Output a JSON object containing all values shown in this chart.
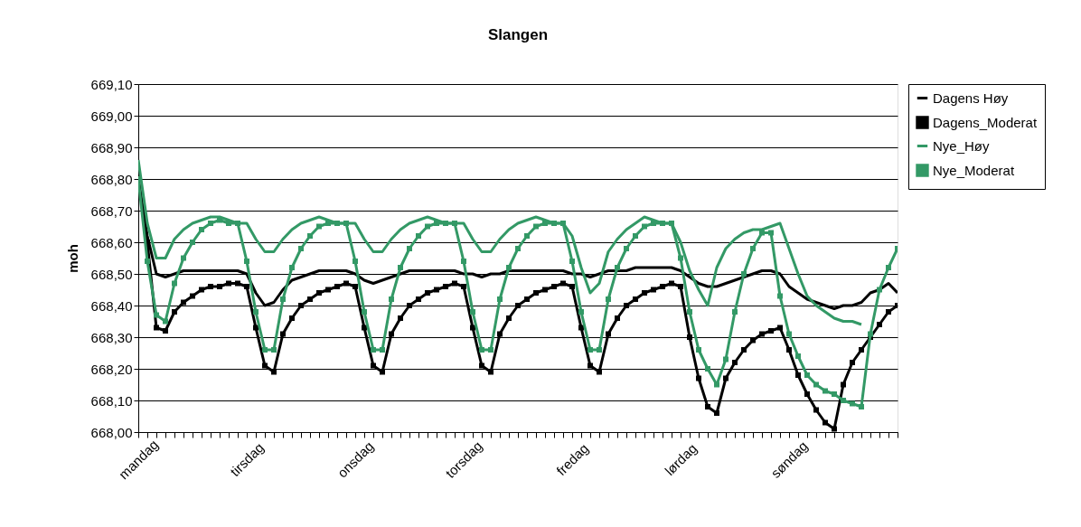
{
  "chart_data": {
    "type": "line",
    "title": "Slangen",
    "ylabel": "moh",
    "categories": [
      "mandag",
      null,
      null,
      null,
      null,
      null,
      null,
      null,
      null,
      null,
      null,
      null,
      "tirsdag",
      null,
      null,
      null,
      null,
      null,
      null,
      null,
      null,
      null,
      null,
      null,
      "onsdag",
      null,
      null,
      null,
      null,
      null,
      null,
      null,
      null,
      null,
      null,
      null,
      "torsdag",
      null,
      null,
      null,
      null,
      null,
      null,
      null,
      null,
      null,
      null,
      null,
      "fredag",
      null,
      null,
      null,
      null,
      null,
      null,
      null,
      null,
      null,
      null,
      null,
      "lørdag",
      null,
      null,
      null,
      null,
      null,
      null,
      null,
      null,
      null,
      null,
      null,
      "søndag",
      null,
      null,
      null,
      null,
      null,
      null,
      null,
      null,
      null,
      null,
      null,
      null
    ],
    "ylim": [
      668.0,
      669.1
    ],
    "yticks": [
      {
        "value": 668.0,
        "label": "668,00"
      },
      {
        "value": 668.1,
        "label": "668,10"
      },
      {
        "value": 668.2,
        "label": "668,20"
      },
      {
        "value": 668.3,
        "label": "668,30"
      },
      {
        "value": 668.4,
        "label": "668,40"
      },
      {
        "value": 668.5,
        "label": "668,50"
      },
      {
        "value": 668.6,
        "label": "668,60"
      },
      {
        "value": 668.7,
        "label": "668,70"
      },
      {
        "value": 668.8,
        "label": "668,80"
      },
      {
        "value": 668.9,
        "label": "668,90"
      },
      {
        "value": 669.0,
        "label": "669,00"
      },
      {
        "value": 669.1,
        "label": "669,10"
      }
    ],
    "grid": "y",
    "legend": "right",
    "line_style": "solid",
    "series": [
      {
        "name": "Dagens Høy",
        "color": "#000000",
        "marker": "none",
        "values": [
          668.8,
          668.62,
          668.5,
          668.49,
          668.5,
          668.51,
          668.51,
          668.51,
          668.51,
          668.51,
          668.51,
          668.51,
          668.5,
          668.44,
          668.4,
          668.41,
          668.45,
          668.48,
          668.49,
          668.5,
          668.51,
          668.51,
          668.51,
          668.51,
          668.5,
          668.48,
          668.47,
          668.48,
          668.49,
          668.5,
          668.51,
          668.51,
          668.51,
          668.51,
          668.51,
          668.51,
          668.5,
          668.5,
          668.49,
          668.5,
          668.5,
          668.51,
          668.51,
          668.51,
          668.51,
          668.51,
          668.51,
          668.51,
          668.5,
          668.5,
          668.49,
          668.5,
          668.51,
          668.51,
          668.51,
          668.52,
          668.52,
          668.52,
          668.52,
          668.52,
          668.51,
          668.49,
          668.47,
          668.46,
          668.46,
          668.47,
          668.48,
          668.49,
          668.5,
          668.51,
          668.51,
          668.5,
          668.46,
          668.44,
          668.42,
          668.41,
          668.4,
          668.39,
          668.4,
          668.4,
          668.41,
          668.44,
          668.45,
          668.47,
          668.44
        ]
      },
      {
        "name": "Dagens_Moderat",
        "color": "#000000",
        "marker": "square",
        "values": [
          668.8,
          668.6,
          668.33,
          668.32,
          668.38,
          668.41,
          668.43,
          668.45,
          668.46,
          668.46,
          668.47,
          668.47,
          668.46,
          668.33,
          668.21,
          668.19,
          668.31,
          668.36,
          668.4,
          668.42,
          668.44,
          668.45,
          668.46,
          668.47,
          668.46,
          668.33,
          668.21,
          668.19,
          668.31,
          668.36,
          668.4,
          668.42,
          668.44,
          668.45,
          668.46,
          668.47,
          668.46,
          668.33,
          668.21,
          668.19,
          668.31,
          668.36,
          668.4,
          668.42,
          668.44,
          668.45,
          668.46,
          668.47,
          668.46,
          668.33,
          668.21,
          668.19,
          668.31,
          668.36,
          668.4,
          668.42,
          668.44,
          668.45,
          668.46,
          668.47,
          668.46,
          668.3,
          668.17,
          668.08,
          668.06,
          668.17,
          668.22,
          668.26,
          668.29,
          668.31,
          668.32,
          668.33,
          668.26,
          668.18,
          668.12,
          668.07,
          668.03,
          668.01,
          668.15,
          668.22,
          668.26,
          668.3,
          668.34,
          668.38,
          668.4
        ]
      },
      {
        "name": "Nye_Høy",
        "color": "#339966",
        "marker": "none",
        "values": [
          668.86,
          668.66,
          668.55,
          668.55,
          668.61,
          668.64,
          668.66,
          668.67,
          668.68,
          668.68,
          668.67,
          668.66,
          668.66,
          668.61,
          668.57,
          668.57,
          668.61,
          668.64,
          668.66,
          668.67,
          668.68,
          668.67,
          668.66,
          668.66,
          668.66,
          668.61,
          668.57,
          668.57,
          668.61,
          668.64,
          668.66,
          668.67,
          668.68,
          668.67,
          668.66,
          668.66,
          668.66,
          668.61,
          668.57,
          668.57,
          668.61,
          668.64,
          668.66,
          668.67,
          668.68,
          668.67,
          668.66,
          668.66,
          668.62,
          668.52,
          668.44,
          668.47,
          668.57,
          668.61,
          668.64,
          668.66,
          668.68,
          668.67,
          668.66,
          668.66,
          668.6,
          668.51,
          668.45,
          668.4,
          668.52,
          668.58,
          668.61,
          668.63,
          668.64,
          668.64,
          668.65,
          668.66,
          668.58,
          668.5,
          668.43,
          668.4,
          668.38,
          668.36,
          668.35,
          668.35,
          668.34,
          null,
          null,
          null,
          null
        ]
      },
      {
        "name": "Nye_Moderat",
        "color": "#339966",
        "marker": "square",
        "values": [
          668.8,
          668.54,
          668.37,
          668.35,
          668.47,
          668.55,
          668.6,
          668.64,
          668.66,
          668.67,
          668.66,
          668.66,
          668.54,
          668.38,
          668.26,
          668.26,
          668.42,
          668.52,
          668.58,
          668.62,
          668.65,
          668.66,
          668.66,
          668.66,
          668.54,
          668.38,
          668.26,
          668.26,
          668.42,
          668.52,
          668.58,
          668.62,
          668.65,
          668.66,
          668.66,
          668.66,
          668.54,
          668.38,
          668.26,
          668.26,
          668.42,
          668.52,
          668.58,
          668.62,
          668.65,
          668.66,
          668.66,
          668.66,
          668.54,
          668.38,
          668.26,
          668.26,
          668.42,
          668.52,
          668.58,
          668.62,
          668.65,
          668.66,
          668.66,
          668.66,
          668.55,
          668.38,
          668.26,
          668.2,
          668.15,
          668.23,
          668.38,
          668.5,
          668.58,
          668.63,
          668.63,
          668.43,
          668.31,
          668.24,
          668.18,
          668.15,
          668.13,
          668.12,
          668.1,
          668.09,
          668.08,
          668.31,
          668.45,
          668.52,
          668.58
        ]
      }
    ]
  }
}
